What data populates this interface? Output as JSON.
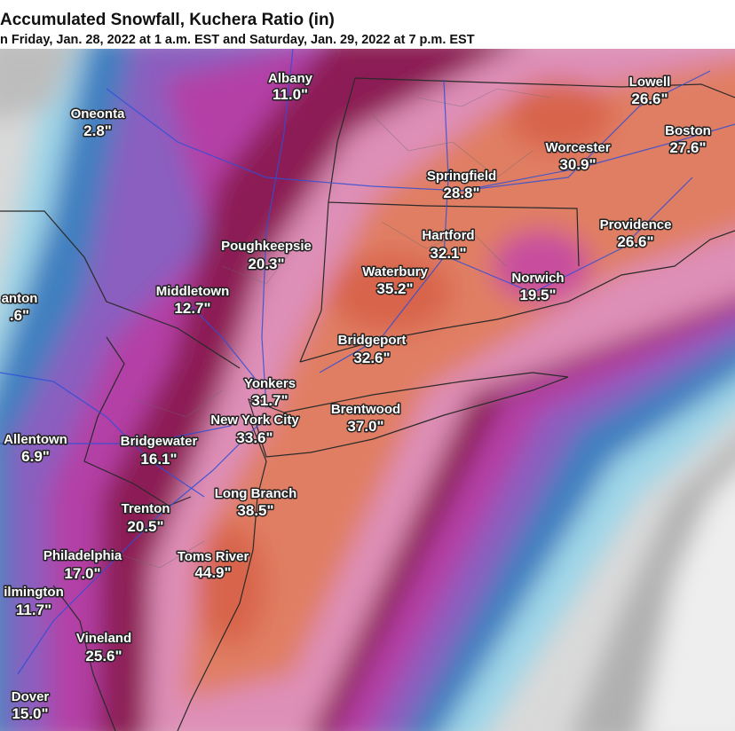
{
  "header": {
    "title": "Accumulated Snowfall, Kuchera Ratio (in)",
    "subtitle": "n Friday, Jan. 28, 2022 at 1 a.m. EST and Saturday, Jan. 29, 2022 at 7 p.m. EST"
  },
  "cities": [
    {
      "name": "Albany",
      "amount": "11.0\""
    },
    {
      "name": "Oneonta",
      "amount": "2.8\""
    },
    {
      "name": "Lowell",
      "amount": "26.6\""
    },
    {
      "name": "Boston",
      "amount": "27.6\""
    },
    {
      "name": "Worcester",
      "amount": "30.9\""
    },
    {
      "name": "Springfield",
      "amount": "28.8\""
    },
    {
      "name": "Providence",
      "amount": "26.6\""
    },
    {
      "name": "Poughkeepsie",
      "amount": "20.3\""
    },
    {
      "name": "Hartford",
      "amount": "32.1\""
    },
    {
      "name": "Waterbury",
      "amount": "35.2\""
    },
    {
      "name": "Norwich",
      "amount": "19.5\""
    },
    {
      "name": "Middletown",
      "amount": "12.7\""
    },
    {
      "name": "anton",
      "amount": ".6\""
    },
    {
      "name": "Bridgeport",
      "amount": "32.6\""
    },
    {
      "name": "Yonkers",
      "amount": "31.7\""
    },
    {
      "name": "New York City",
      "amount": "33.6\""
    },
    {
      "name": "Brentwood",
      "amount": "37.0\""
    },
    {
      "name": "Allentown",
      "amount": "6.9\""
    },
    {
      "name": "Bridgewater",
      "amount": "16.1\""
    },
    {
      "name": "Long Branch",
      "amount": "38.5\""
    },
    {
      "name": "Trenton",
      "amount": "20.5\""
    },
    {
      "name": "Toms River",
      "amount": "44.9\""
    },
    {
      "name": "Philadelphia",
      "amount": "17.0\""
    },
    {
      "name": "ilmington",
      "amount": "11.7\""
    },
    {
      "name": "Vineland",
      "amount": "25.6\""
    },
    {
      "name": "Dover",
      "amount": "15.0\""
    }
  ]
}
